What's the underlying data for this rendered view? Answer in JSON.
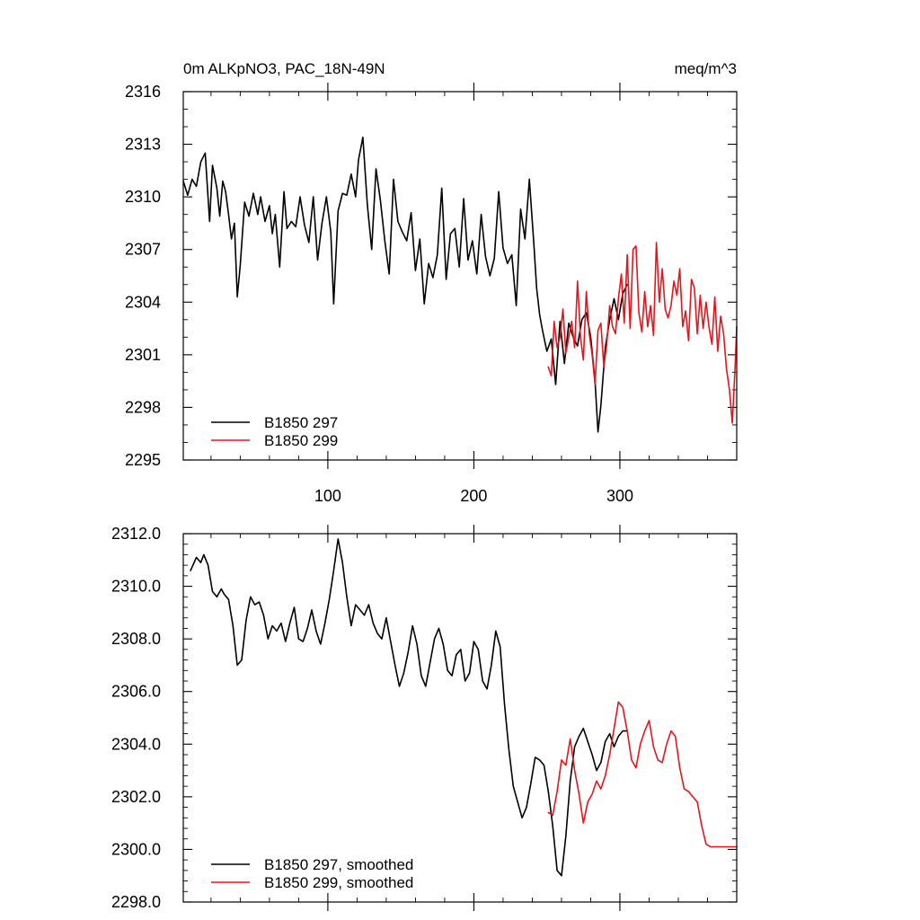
{
  "figure": {
    "title_left": "0m ALKpNO3, PAC_18N-49N",
    "title_right": "meq/m^3"
  },
  "colors": {
    "black": "#000000",
    "red": "#e8141b"
  },
  "chart_data": [
    {
      "type": "line",
      "panel": "top",
      "title": "0m ALKpNO3, PAC_18N-49N",
      "units": "meq/m^3",
      "xlim": [
        1,
        380
      ],
      "ylim": [
        2295,
        2316
      ],
      "xticks": [
        100,
        200,
        300
      ],
      "xticklabels": [
        "100",
        "200",
        "300"
      ],
      "yticks": [
        2295,
        2298,
        2301,
        2304,
        2307,
        2310,
        2313,
        2316
      ],
      "yticklabels": [
        "2295",
        "2298",
        "2301",
        "2304",
        "2307",
        "2310",
        "2313",
        "2316"
      ],
      "legend_position": "bottom-left",
      "series": [
        {
          "name": "B1850 297",
          "color": "#000000",
          "x": [
            1,
            4,
            7,
            10,
            13,
            16,
            19,
            21,
            24,
            26,
            28,
            30,
            32,
            34,
            36,
            38,
            40,
            43,
            46,
            49,
            52,
            54,
            57,
            60,
            62,
            64,
            67,
            70,
            72,
            75,
            78,
            81,
            84,
            87,
            90,
            93,
            96,
            99,
            102,
            104,
            107,
            110,
            113,
            116,
            119,
            121,
            124,
            127,
            130,
            133,
            136,
            139,
            142,
            145,
            148,
            151,
            154,
            157,
            160,
            163,
            166,
            169,
            172,
            175,
            178,
            181,
            184,
            187,
            190,
            193,
            196,
            199,
            202,
            205,
            208,
            211,
            214,
            217,
            220,
            223,
            226,
            229,
            232,
            235,
            238,
            241,
            243,
            245,
            247,
            250,
            253,
            256,
            259,
            262,
            265,
            268,
            271,
            274,
            277,
            280,
            283,
            285,
            287,
            290,
            293,
            296,
            299,
            302,
            305
          ],
          "values": [
            2310.9,
            2310.1,
            2311.0,
            2310.6,
            2312.0,
            2312.5,
            2308.6,
            2311.8,
            2310.5,
            2308.9,
            2310.9,
            2310.3,
            2309.0,
            2307.6,
            2308.5,
            2304.3,
            2306.1,
            2309.7,
            2308.9,
            2310.2,
            2309.0,
            2310.0,
            2308.6,
            2309.5,
            2307.9,
            2309.0,
            2306.0,
            2310.3,
            2308.2,
            2308.6,
            2308.3,
            2310.0,
            2308.4,
            2307.4,
            2310.0,
            2306.4,
            2308.5,
            2310.0,
            2308.0,
            2303.9,
            2309.2,
            2310.2,
            2310.1,
            2311.3,
            2310.0,
            2312.1,
            2313.4,
            2309.6,
            2307.0,
            2311.6,
            2309.8,
            2307.5,
            2305.6,
            2311.0,
            2308.6,
            2308.0,
            2307.5,
            2309.1,
            2305.8,
            2307.6,
            2303.9,
            2306.2,
            2305.4,
            2306.7,
            2310.5,
            2305.3,
            2307.9,
            2308.2,
            2306.0,
            2309.9,
            2306.4,
            2307.5,
            2305.6,
            2309.0,
            2306.6,
            2305.5,
            2306.5,
            2310.3,
            2307.1,
            2306.2,
            2306.7,
            2303.8,
            2309.3,
            2307.6,
            2311.0,
            2307.4,
            2304.8,
            2303.3,
            2302.4,
            2301.2,
            2301.9,
            2299.3,
            2302.9,
            2300.5,
            2302.8,
            2302.0,
            2301.5,
            2303.0,
            2303.4,
            2302.0,
            2299.5,
            2296.6,
            2298.1,
            2301.4,
            2303.0,
            2304.2,
            2303.0,
            2304.5,
            2305.0
          ]
        },
        {
          "name": "B1850 299",
          "color": "#e8141b",
          "x": [
            251,
            253,
            255,
            257,
            259,
            261,
            263,
            265,
            267,
            269,
            271,
            273,
            275,
            277,
            279,
            281,
            283,
            285,
            287,
            289,
            291,
            293,
            295,
            297,
            299,
            301,
            303,
            305,
            307,
            309,
            311,
            313,
            315,
            317,
            319,
            321,
            323,
            325,
            327,
            329,
            331,
            333,
            335,
            337,
            339,
            341,
            343,
            345,
            347,
            349,
            351,
            353,
            355,
            357,
            359,
            361,
            363,
            365,
            367,
            369,
            371,
            373,
            375,
            377,
            379,
            380
          ],
          "values": [
            2300.3,
            2299.8,
            2302.9,
            2301.4,
            2302.0,
            2303.6,
            2301.1,
            2302.0,
            2302.9,
            2301.4,
            2305.2,
            2302.0,
            2300.7,
            2304.6,
            2302.2,
            2301.0,
            2299.3,
            2302.4,
            2302.8,
            2300.3,
            2301.6,
            2303.8,
            2302.6,
            2302.2,
            2304.2,
            2305.6,
            2302.8,
            2306.7,
            2302.5,
            2307.0,
            2307.2,
            2303.4,
            2302.3,
            2304.6,
            2302.6,
            2303.8,
            2302.1,
            2307.4,
            2304.0,
            2305.9,
            2303.6,
            2303.1,
            2303.8,
            2305.2,
            2304.4,
            2305.9,
            2302.6,
            2303.5,
            2301.8,
            2305.3,
            2304.8,
            2302.2,
            2304.4,
            2302.5,
            2304.0,
            2302.6,
            2301.6,
            2304.3,
            2301.2,
            2303.2,
            2302.2,
            2300.2,
            2299.0,
            2297.1,
            2300.5,
            2302.6
          ]
        }
      ]
    },
    {
      "type": "line",
      "panel": "bottom",
      "xlim": [
        1,
        380
      ],
      "ylim": [
        2298,
        2312
      ],
      "yticks": [
        2298,
        2300,
        2302,
        2304,
        2306,
        2308,
        2310,
        2312
      ],
      "yticklabels": [
        "2298.0",
        "2300.0",
        "2302.0",
        "2304.0",
        "2306.0",
        "2308.0",
        "2310.0",
        "2312.0"
      ],
      "legend_position": "bottom-left",
      "series": [
        {
          "name": "B1850 297, smoothed",
          "color": "#000000",
          "x": [
            6,
            10,
            13,
            15,
            18,
            21,
            24,
            27,
            29,
            32,
            35,
            38,
            41,
            44,
            47,
            50,
            53,
            56,
            59,
            62,
            65,
            68,
            71,
            74,
            77,
            80,
            83,
            86,
            89,
            92,
            95,
            98,
            101,
            104,
            107,
            110,
            113,
            116,
            119,
            122,
            125,
            128,
            131,
            134,
            137,
            140,
            143,
            146,
            149,
            152,
            155,
            158,
            161,
            164,
            167,
            170,
            173,
            176,
            179,
            182,
            185,
            188,
            191,
            194,
            197,
            200,
            203,
            206,
            209,
            212,
            215,
            218,
            221,
            224,
            227,
            230,
            233,
            236,
            239,
            242,
            245,
            248,
            251,
            254,
            257,
            260,
            263,
            266,
            269,
            272,
            275,
            278,
            281,
            284,
            287,
            290,
            293,
            296,
            299,
            302,
            305
          ],
          "values": [
            2310.6,
            2311.1,
            2310.9,
            2311.2,
            2310.8,
            2309.8,
            2309.6,
            2309.9,
            2309.7,
            2309.5,
            2308.5,
            2307.0,
            2307.2,
            2308.7,
            2309.6,
            2309.3,
            2309.4,
            2308.9,
            2308.0,
            2308.5,
            2308.3,
            2308.6,
            2307.9,
            2308.6,
            2309.2,
            2308.0,
            2307.9,
            2308.4,
            2309.1,
            2308.3,
            2307.8,
            2308.6,
            2309.5,
            2310.6,
            2311.8,
            2310.9,
            2309.6,
            2308.5,
            2309.3,
            2309.1,
            2308.9,
            2309.3,
            2308.6,
            2308.2,
            2308.0,
            2308.8,
            2307.9,
            2307.0,
            2306.2,
            2306.7,
            2307.5,
            2308.5,
            2307.8,
            2306.6,
            2306.2,
            2307.1,
            2308.0,
            2308.4,
            2307.8,
            2306.8,
            2306.6,
            2307.4,
            2307.6,
            2306.4,
            2306.7,
            2307.9,
            2307.6,
            2306.4,
            2306.1,
            2307.0,
            2308.3,
            2307.7,
            2305.5,
            2303.8,
            2302.4,
            2301.8,
            2301.2,
            2301.6,
            2302.5,
            2303.5,
            2303.4,
            2303.2,
            2302.2,
            2300.9,
            2299.2,
            2299.0,
            2300.5,
            2302.6,
            2303.9,
            2304.3,
            2304.6,
            2304.1,
            2303.6,
            2303.0,
            2303.3,
            2304.1,
            2304.4,
            2303.9,
            2304.3,
            2304.5,
            2304.5
          ]
        },
        {
          "name": "B1850 299, smoothed",
          "color": "#e8141b",
          "x": [
            251,
            254,
            257,
            260,
            263,
            266,
            269,
            272,
            275,
            278,
            281,
            284,
            287,
            290,
            293,
            296,
            299,
            302,
            305,
            308,
            311,
            314,
            317,
            320,
            323,
            326,
            329,
            332,
            335,
            338,
            341,
            344,
            347,
            350,
            353,
            356,
            359,
            362,
            365,
            368,
            371,
            374,
            377,
            380
          ],
          "values": [
            2301.4,
            2301.3,
            2302.2,
            2303.4,
            2303.2,
            2304.2,
            2303.0,
            2302.1,
            2301.0,
            2301.8,
            2302.1,
            2302.6,
            2302.3,
            2302.8,
            2303.6,
            2304.6,
            2305.6,
            2305.4,
            2304.5,
            2303.4,
            2303.1,
            2304.0,
            2304.5,
            2304.9,
            2303.9,
            2303.4,
            2303.3,
            2304.0,
            2304.5,
            2304.3,
            2303.1,
            2302.3,
            2302.2,
            2302.0,
            2301.8,
            2300.9,
            2300.2,
            2300.1,
            2300.1,
            2300.1,
            2300.1,
            2300.1,
            2300.1,
            2300.1
          ]
        }
      ]
    }
  ]
}
